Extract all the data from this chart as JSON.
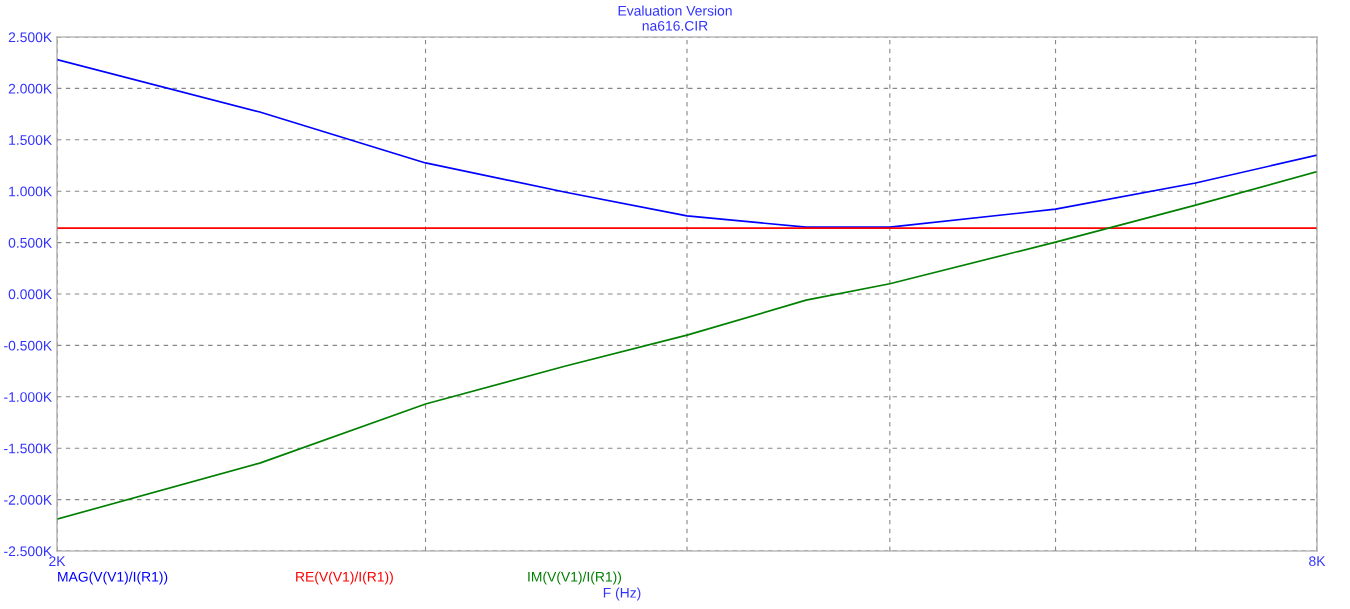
{
  "chart_data": {
    "type": "line",
    "title": "Evaluation Version",
    "subtitle": "na616.CIR",
    "xlabel": "F (Hz)",
    "x": [
      2000,
      2500,
      3000,
      3500,
      4000,
      4560,
      5000,
      6000,
      7000,
      8000
    ],
    "series": [
      {
        "name": "MAG(V(V1)/I(R1))",
        "color": "#0000ff",
        "values": [
          2280,
          1770,
          1275,
          990,
          760,
          650,
          650,
          825,
          1080,
          1350
        ]
      },
      {
        "name": "RE(V(V1)/I(R1))",
        "color": "#ff0000",
        "values": [
          640,
          640,
          640,
          640,
          640,
          640,
          640,
          640,
          640,
          640
        ]
      },
      {
        "name": "IM(V(V1)/I(R1))",
        "color": "#008000",
        "values": [
          -2190,
          -1645,
          -1070,
          -700,
          -400,
          -60,
          100,
          505,
          865,
          1190
        ]
      }
    ],
    "log": "x",
    "xlim": [
      2000,
      8000
    ],
    "xticks": [
      {
        "value": 2000,
        "label": "2K"
      },
      {
        "value": 3000,
        "label": null
      },
      {
        "value": 4000,
        "label": null
      },
      {
        "value": 5000,
        "label": null
      },
      {
        "value": 6000,
        "label": null
      },
      {
        "value": 7000,
        "label": null
      },
      {
        "value": 8000,
        "label": "8K"
      }
    ],
    "ylim": [
      -2500,
      2500
    ],
    "yticks": [
      {
        "value": -2500,
        "label": "-2.500K"
      },
      {
        "value": -2000,
        "label": "-2.000K"
      },
      {
        "value": -1500,
        "label": "-1.500K"
      },
      {
        "value": -1000,
        "label": "-1.000K"
      },
      {
        "value": -500,
        "label": "-0.500K"
      },
      {
        "value": 0,
        "label": "0.000K"
      },
      {
        "value": 500,
        "label": "0.500K"
      },
      {
        "value": 1000,
        "label": "1.000K"
      },
      {
        "value": 1500,
        "label": "1.500K"
      },
      {
        "value": 2000,
        "label": "2.000K"
      },
      {
        "value": 2500,
        "label": "2.500K"
      }
    ],
    "grid": true,
    "legend": "bottom",
    "line_style": "solid",
    "marker": "none"
  }
}
